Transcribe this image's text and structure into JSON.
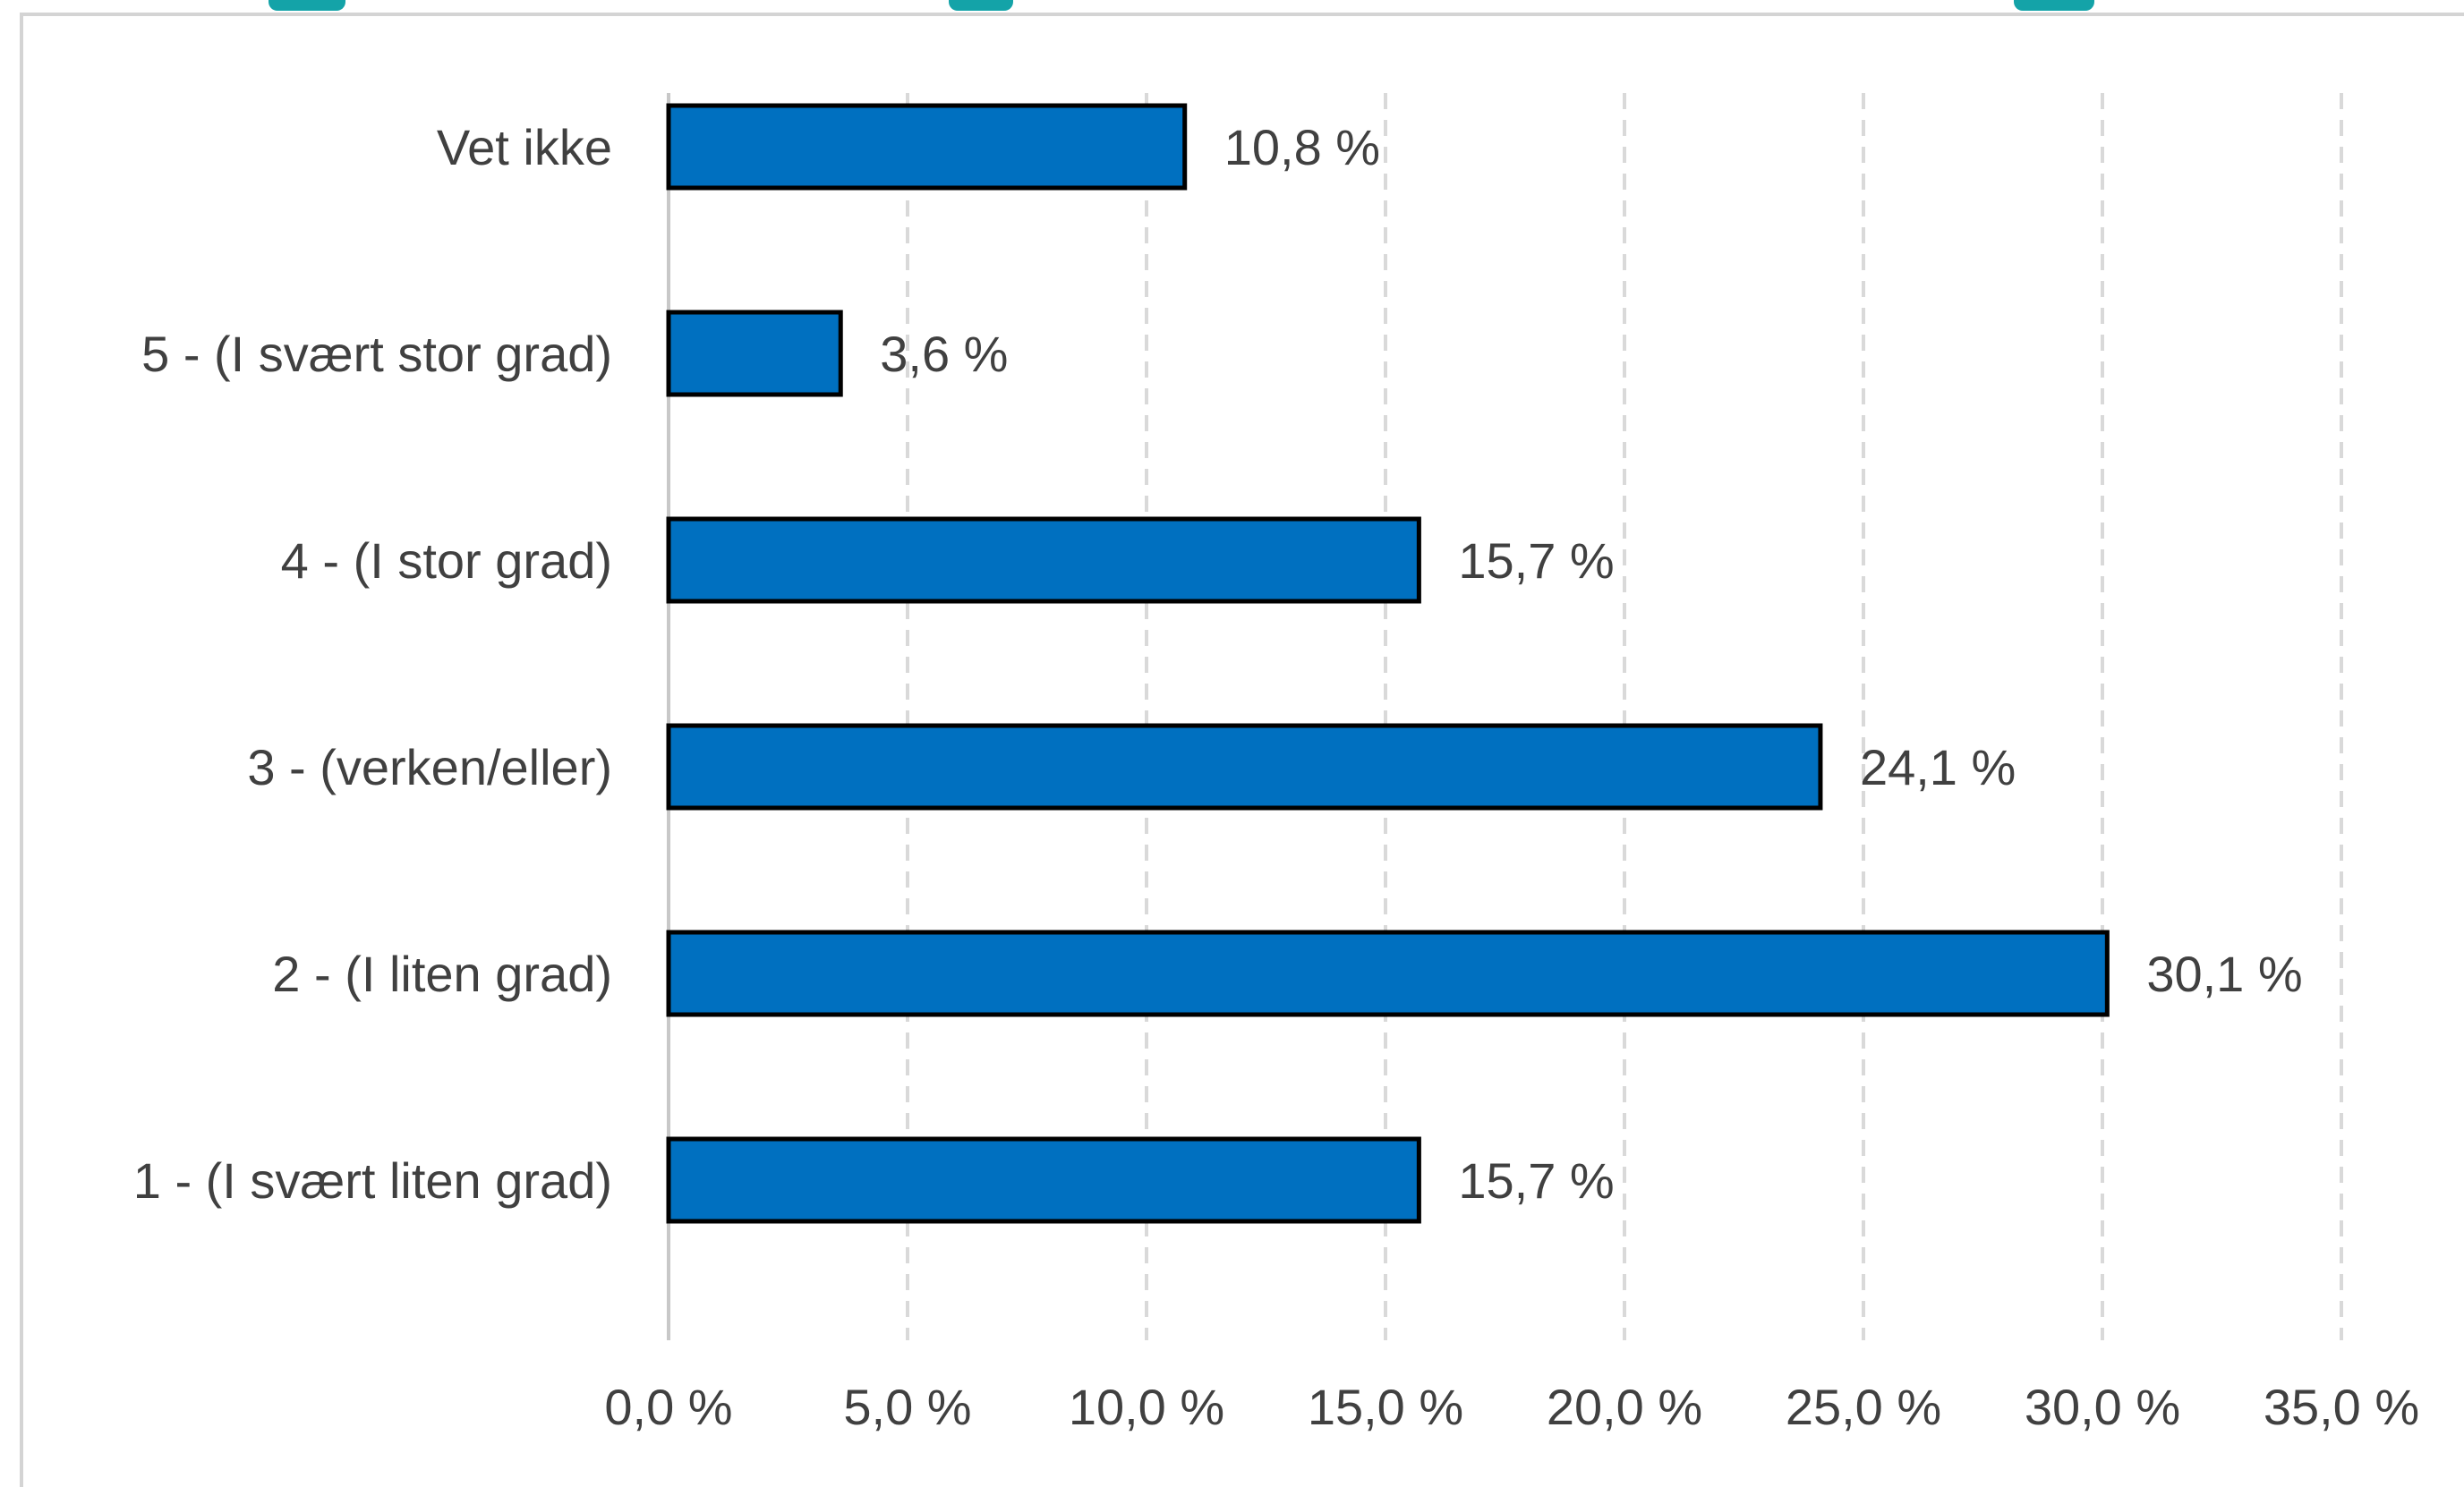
{
  "chart_data": {
    "type": "bar",
    "orientation": "horizontal",
    "title": "",
    "xlabel": "",
    "ylabel": "",
    "categories": [
      "Vet ikke",
      "5 - (I svært stor grad)",
      "4 - (I stor grad)",
      "3 - (verken/eller)",
      "2 - (I liten grad)",
      "1 - (I svært liten grad)"
    ],
    "values": [
      10.8,
      3.6,
      15.7,
      24.1,
      30.1,
      15.7
    ],
    "value_labels": [
      "10,8 %",
      "3,6 %",
      "15,7 %",
      "24,1 %",
      "30,1 %",
      "15,7 %"
    ],
    "xlim": [
      0,
      35
    ],
    "ticks": [
      0,
      5,
      10,
      15,
      20,
      25,
      30,
      35
    ],
    "tick_labels": [
      "0,0 %",
      "5,0 %",
      "10,0 %",
      "15,0 %",
      "20,0 %",
      "25,0 %",
      "30,0 %",
      "35,0 %"
    ],
    "grid": "vertical dashed",
    "legend": "none",
    "colors": {
      "bar_fill": "#0070c0",
      "bar_stroke": "#000000",
      "grid": "#d9d9d9",
      "axis": "#c8c8c8",
      "text": "#404040",
      "title_accent": "#14a3a8"
    }
  }
}
